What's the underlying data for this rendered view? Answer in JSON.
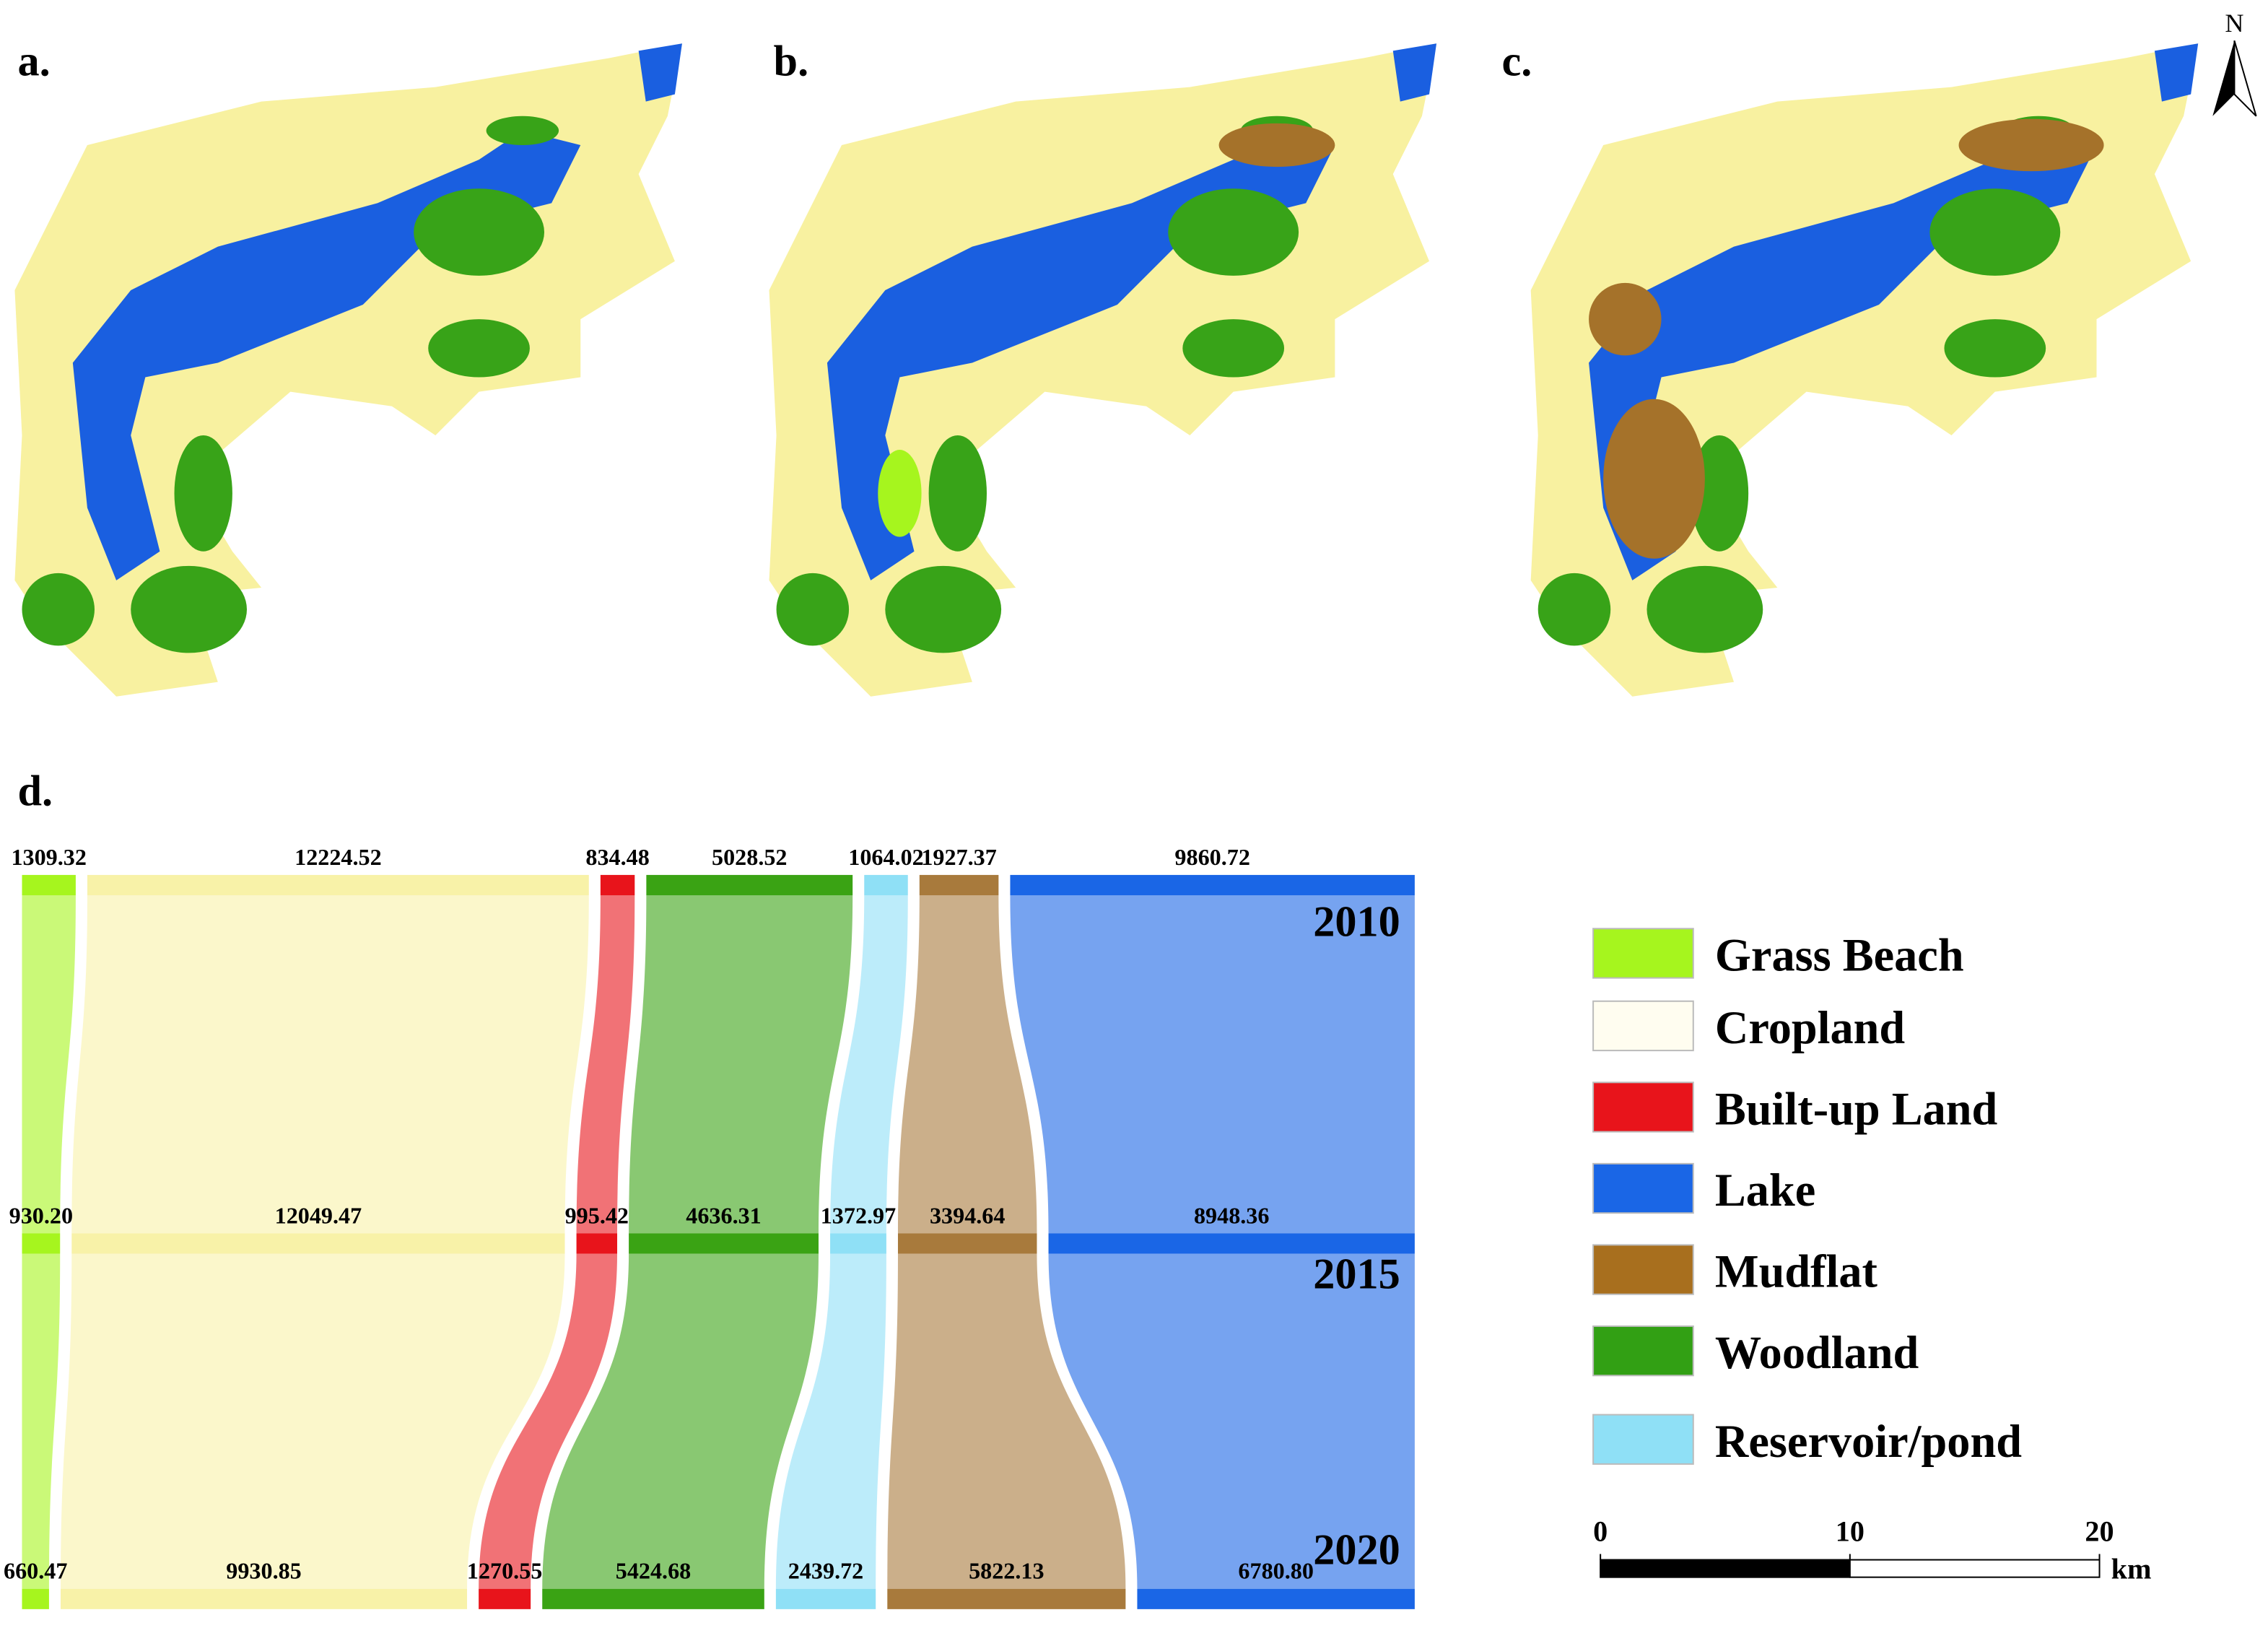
{
  "panels": {
    "a": "a.",
    "b": "b.",
    "c": "c.",
    "d": "d."
  },
  "north": "N",
  "sankey": {
    "years": [
      "2010",
      "2015",
      "2020"
    ],
    "colors": [
      "#a6f51e",
      "#f8f2a8",
      "#e8141b",
      "#3aa314",
      "#8fe0f6",
      "#a87a3c",
      "#1a66e6"
    ],
    "stages": [
      {
        "values": [
          1309.32,
          12224.52,
          834.48,
          5028.52,
          1064.02,
          1927.37,
          9860.72
        ],
        "value_labels": [
          "1309.32",
          "12224.52",
          "834.48",
          "5028.52",
          "1064.02",
          "1927.37",
          "9860.72"
        ]
      },
      {
        "values": [
          930.2,
          12049.47,
          995.42,
          4636.31,
          1372.97,
          3394.64,
          8948.36
        ],
        "value_labels": [
          "930.20",
          "12049.47",
          "995.42",
          "4636.31",
          "1372.97",
          "3394.64",
          "8948.36"
        ]
      },
      {
        "values": [
          660.47,
          9930.85,
          1270.55,
          5424.68,
          2439.72,
          5822.13,
          6780.8
        ],
        "value_labels": [
          "660.47",
          "9930.85",
          "1270.55",
          "5424.68",
          "2439.72",
          "5822.13",
          "6780.80"
        ]
      }
    ]
  },
  "legend": [
    {
      "name": "Grass Beach",
      "color": "#a6f51e"
    },
    {
      "name": "Cropland",
      "color": "#fffdf0"
    },
    {
      "name": "Built-up Land",
      "color": "#e8141b"
    },
    {
      "name": "Lake",
      "color": "#1a66e6"
    },
    {
      "name": "Mudflat",
      "color": "#a86f1e"
    },
    {
      "name": "Woodland",
      "color": "#32a014"
    },
    {
      "name": "Reservoir/pond",
      "color": "#8fe0f6"
    }
  ],
  "scale_bar": {
    "ticks": [
      0,
      10,
      20
    ],
    "unit": "km"
  }
}
